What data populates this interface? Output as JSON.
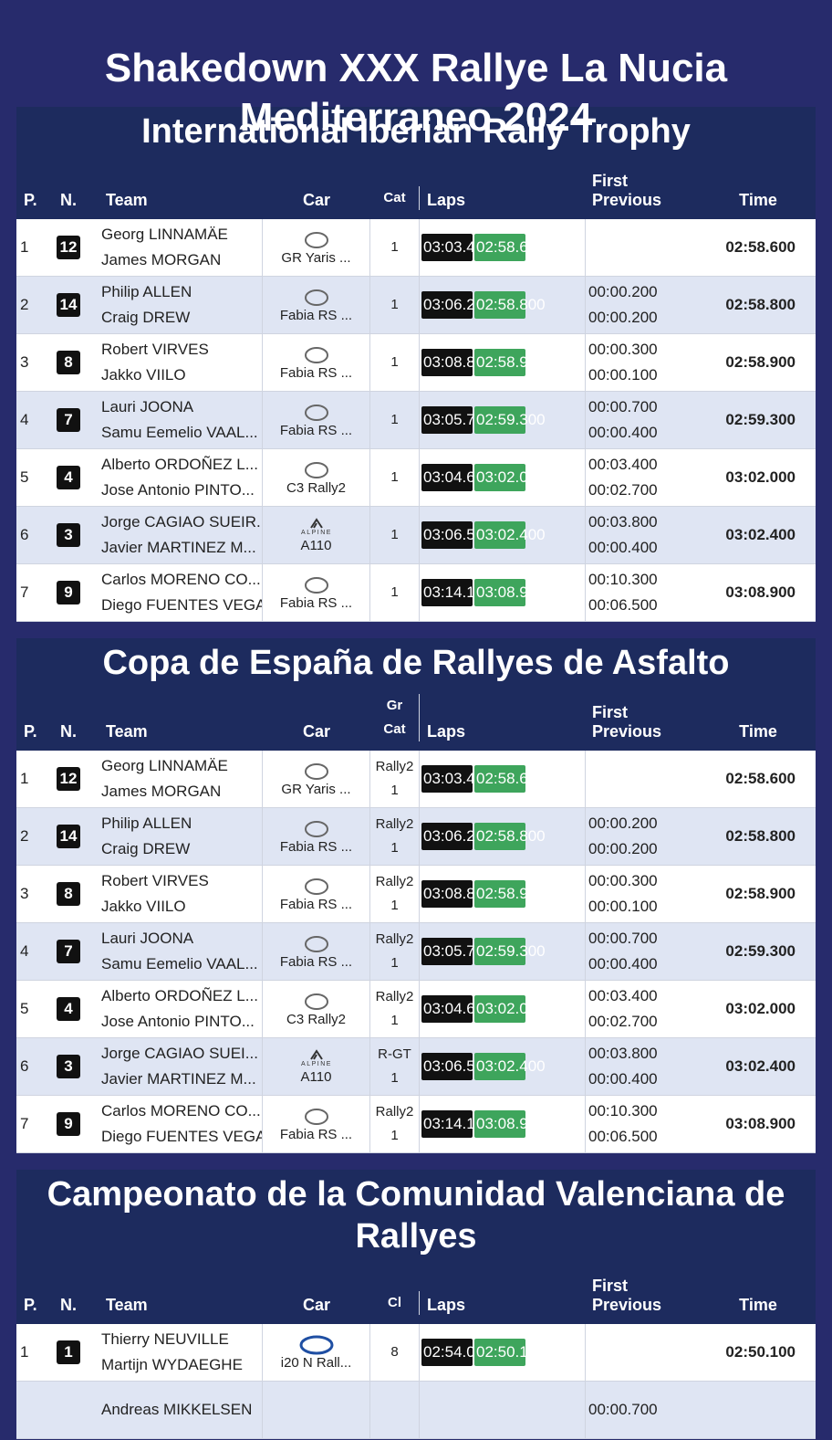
{
  "title": "Shakedown XXX Rallye La Nucia Mediterraneo 2024",
  "sections": [
    {
      "title": "International Iberian Rally Trophy",
      "headers": {
        "pos": "P.",
        "num": "N.",
        "team": "Team",
        "car": "Car",
        "cat": [
          "Cat"
        ],
        "laps": "Laps",
        "first": "First",
        "previous": "Previous",
        "time": "Time"
      },
      "rows": [
        {
          "pos": "1",
          "num": "12",
          "team": [
            "Georg LINNAMÄE",
            "James MORGAN"
          ],
          "car": "GR Yaris ...",
          "cat": [
            "1"
          ],
          "laps": [
            "03:03.4",
            "02:58.6"
          ],
          "time": "02:58.600"
        },
        {
          "pos": "2",
          "num": "14",
          "team": [
            "Philip ALLEN",
            "Craig DREW"
          ],
          "car": "Fabia RS ...",
          "cat": [
            "1"
          ],
          "laps": [
            "03:06.2",
            "02:58.800"
          ],
          "first": "00:00.200",
          "previous": "00:00.200",
          "time": "02:58.800"
        },
        {
          "pos": "3",
          "num": "8",
          "team": [
            "Robert VIRVES",
            "Jakko VIILO"
          ],
          "car": "Fabia RS ...",
          "cat": [
            "1"
          ],
          "laps": [
            "03:08.8",
            "02:58.9"
          ],
          "first": "00:00.300",
          "previous": "00:00.100",
          "time": "02:58.900"
        },
        {
          "pos": "4",
          "num": "7",
          "team": [
            "Lauri JOONA",
            "Samu Eemelio VAAL..."
          ],
          "car": "Fabia RS ...",
          "cat": [
            "1"
          ],
          "laps": [
            "03:05.7",
            "02:59.300"
          ],
          "first": "00:00.700",
          "previous": "00:00.400",
          "time": "02:59.300"
        },
        {
          "pos": "5",
          "num": "4",
          "team": [
            "Alberto ORDOÑEZ L...",
            "Jose Antonio PINTO..."
          ],
          "car": "C3 Rally2",
          "cat": [
            "1"
          ],
          "laps": [
            "03:04.6",
            "03:02.0"
          ],
          "first": "00:03.400",
          "previous": "00:02.700",
          "time": "03:02.000"
        },
        {
          "pos": "6",
          "num": "3",
          "team": [
            "Jorge CAGIAO SUEIR...",
            "Javier MARTINEZ M..."
          ],
          "car": "A110",
          "logo_text": "ALPINE",
          "cat": [
            "1"
          ],
          "laps": [
            "03:06.5",
            "03:02.400"
          ],
          "first": "00:03.800",
          "previous": "00:00.400",
          "time": "03:02.400"
        },
        {
          "pos": "7",
          "num": "9",
          "team": [
            "Carlos MORENO CO...",
            "Diego FUENTES VEGA"
          ],
          "car": "Fabia RS ...",
          "cat": [
            "1"
          ],
          "laps": [
            "03:14.1",
            "03:08.9"
          ],
          "first": "00:10.300",
          "previous": "00:06.500",
          "time": "03:08.900"
        }
      ]
    },
    {
      "title": "Copa de España de Rallyes de Asfalto",
      "headers": {
        "pos": "P.",
        "num": "N.",
        "team": "Team",
        "car": "Car",
        "cat": [
          "Gr",
          "Cat"
        ],
        "laps": "Laps",
        "first": "First",
        "previous": "Previous",
        "time": "Time"
      },
      "rows": [
        {
          "pos": "1",
          "num": "12",
          "team": [
            "Georg LINNAMÄE",
            "James MORGAN"
          ],
          "car": "GR Yaris ...",
          "cat": [
            "Rally2",
            "1"
          ],
          "laps": [
            "03:03.4",
            "02:58.6"
          ],
          "time": "02:58.600"
        },
        {
          "pos": "2",
          "num": "14",
          "team": [
            "Philip ALLEN",
            "Craig DREW"
          ],
          "car": "Fabia RS ...",
          "cat": [
            "Rally2",
            "1"
          ],
          "laps": [
            "03:06.2",
            "02:58.800"
          ],
          "first": "00:00.200",
          "previous": "00:00.200",
          "time": "02:58.800"
        },
        {
          "pos": "3",
          "num": "8",
          "team": [
            "Robert VIRVES",
            "Jakko VIILO"
          ],
          "car": "Fabia RS ...",
          "cat": [
            "Rally2",
            "1"
          ],
          "laps": [
            "03:08.8",
            "02:58.9"
          ],
          "first": "00:00.300",
          "previous": "00:00.100",
          "time": "02:58.900"
        },
        {
          "pos": "4",
          "num": "7",
          "team": [
            "Lauri JOONA",
            "Samu Eemelio VAAL..."
          ],
          "car": "Fabia RS ...",
          "cat": [
            "Rally2",
            "1"
          ],
          "laps": [
            "03:05.7",
            "02:59.300"
          ],
          "first": "00:00.700",
          "previous": "00:00.400",
          "time": "02:59.300"
        },
        {
          "pos": "5",
          "num": "4",
          "team": [
            "Alberto ORDOÑEZ L...",
            "Jose Antonio PINTO..."
          ],
          "car": "C3 Rally2",
          "cat": [
            "Rally2",
            "1"
          ],
          "laps": [
            "03:04.6",
            "03:02.0"
          ],
          "first": "00:03.400",
          "previous": "00:02.700",
          "time": "03:02.000"
        },
        {
          "pos": "6",
          "num": "3",
          "team": [
            "Jorge CAGIAO SUEI...",
            "Javier MARTINEZ M..."
          ],
          "car": "A110",
          "logo_text": "ALPINE",
          "cat": [
            "R-GT",
            "1"
          ],
          "laps": [
            "03:06.5",
            "03:02.400"
          ],
          "first": "00:03.800",
          "previous": "00:00.400",
          "time": "03:02.400"
        },
        {
          "pos": "7",
          "num": "9",
          "team": [
            "Carlos MORENO CO...",
            "Diego FUENTES VEGA"
          ],
          "car": "Fabia RS ...",
          "cat": [
            "Rally2",
            "1"
          ],
          "laps": [
            "03:14.1",
            "03:08.9"
          ],
          "first": "00:10.300",
          "previous": "00:06.500",
          "time": "03:08.900"
        }
      ]
    },
    {
      "title": "Campeonato de la Comunidad Valenciana de Rallyes",
      "headers": {
        "pos": "P.",
        "num": "N.",
        "team": "Team",
        "car": "Car",
        "cat": [
          "Cl"
        ],
        "laps": "Laps",
        "first": "First",
        "previous": "Previous",
        "time": "Time"
      },
      "rows": [
        {
          "pos": "1",
          "num": "1",
          "team": [
            "Thierry NEUVILLE",
            "Martijn WYDAEGHE"
          ],
          "car": "i20 N Rall...",
          "cat": [
            "8"
          ],
          "laps": [
            "02:54.0",
            "02:50.1"
          ],
          "time": "02:50.100"
        },
        {
          "team": [
            "Andreas MIKKELSEN"
          ],
          "first": "00:00.700"
        }
      ]
    }
  ]
}
